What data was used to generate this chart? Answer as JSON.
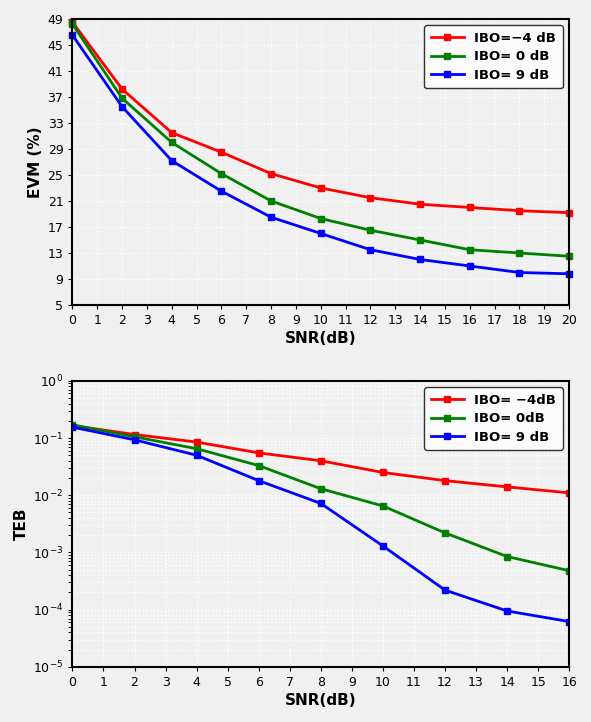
{
  "evm_snr": [
    0,
    2,
    4,
    6,
    8,
    10,
    12,
    14,
    16,
    18,
    20
  ],
  "evm_ibo_m4": [
    48.5,
    38.2,
    31.5,
    28.5,
    25.2,
    23.0,
    21.5,
    20.5,
    20.0,
    19.5,
    19.2
  ],
  "evm_ibo_0": [
    48.2,
    36.8,
    30.0,
    25.2,
    21.0,
    18.3,
    16.5,
    15.0,
    13.5,
    13.0,
    12.5
  ],
  "evm_ibo_9": [
    46.5,
    35.5,
    27.2,
    22.5,
    18.5,
    16.0,
    13.5,
    12.0,
    11.0,
    10.0,
    9.8
  ],
  "teb_snr": [
    0,
    2,
    4,
    6,
    8,
    10,
    12,
    14,
    16
  ],
  "teb_ibo_m4": [
    0.165,
    0.115,
    0.085,
    0.055,
    0.04,
    0.025,
    0.018,
    0.014,
    0.011
  ],
  "teb_ibo_0": [
    0.17,
    0.105,
    0.065,
    0.033,
    0.013,
    0.0065,
    0.0022,
    0.00085,
    0.00048
  ],
  "teb_ibo_9": [
    0.155,
    0.093,
    0.05,
    0.018,
    0.0072,
    0.0013,
    0.00022,
    9.5e-05,
    6.2e-05
  ],
  "color_red": "#ff0000",
  "color_green": "#008000",
  "color_blue": "#0000ff",
  "evm_ylabel": "EVM (%)",
  "evm_xlabel": "SNR(dB)",
  "evm_xlim": [
    0,
    20
  ],
  "evm_ylim": [
    5,
    49
  ],
  "evm_yticks": [
    5,
    9,
    13,
    17,
    21,
    25,
    29,
    33,
    37,
    41,
    45,
    49
  ],
  "evm_xticks": [
    0,
    1,
    2,
    3,
    4,
    5,
    6,
    7,
    8,
    9,
    10,
    11,
    12,
    13,
    14,
    15,
    16,
    17,
    18,
    19,
    20
  ],
  "teb_ylabel": "TEB",
  "teb_xlabel": "SNR(dB)",
  "teb_xlim": [
    0,
    16
  ],
  "teb_ylim_log": [
    -5,
    0
  ],
  "teb_xticks": [
    0,
    1,
    2,
    3,
    4,
    5,
    6,
    7,
    8,
    9,
    10,
    11,
    12,
    13,
    14,
    15,
    16
  ],
  "legend1_labels": [
    "IBO=−4 dB",
    "IBO= 0 dB",
    "IBO= 9 dB"
  ],
  "legend2_labels": [
    "IBO= −4dB",
    "IBO= 0dB",
    "IBO= 9 dB"
  ],
  "bg_color": "#f0f0f0",
  "plot_bg_color": "#f0f0f0",
  "grid_color": "#ffffff",
  "marker": "s",
  "markersize": 5,
  "linewidth": 2.0
}
